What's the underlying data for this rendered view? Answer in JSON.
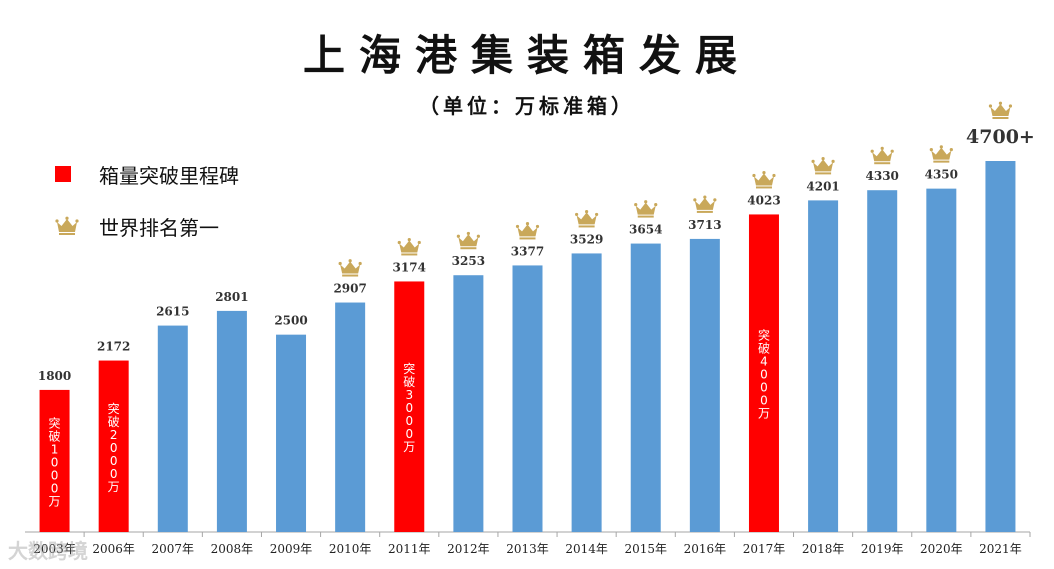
{
  "title": "上海港集装箱发展",
  "subtitle": "（单位：万标准箱）",
  "legend": {
    "milestone_label": "箱量突破里程碑",
    "rank_label": "世界排名第一"
  },
  "watermark": "大数跨境",
  "colors": {
    "normal_bar": "#5b9bd5",
    "milestone_bar": "#ff0000",
    "crown": "#c9a85a",
    "axis": "#a6a6a6"
  },
  "chart_data": {
    "type": "bar",
    "title": "上海港集装箱发展",
    "subtitle": "（单位：万标准箱）",
    "categories": [
      "2003年",
      "2006年",
      "2007年",
      "2008年",
      "2009年",
      "2010年",
      "2011年",
      "2012年",
      "2013年",
      "2014年",
      "2015年",
      "2016年",
      "2017年",
      "2018年",
      "2019年",
      "2020年",
      "2021年"
    ],
    "values": [
      1800,
      2172,
      2615,
      2801,
      2500,
      2907,
      3174,
      3253,
      3377,
      3529,
      3654,
      3713,
      4023,
      4201,
      4330,
      4350,
      4700
    ],
    "value_labels": [
      "1800",
      "2172",
      "2615",
      "2801",
      "2500",
      "2907",
      "3174",
      "3253",
      "3377",
      "3529",
      "3654",
      "3713",
      "4023",
      "4201",
      "4330",
      "4350",
      "4700+"
    ],
    "milestone": [
      true,
      true,
      false,
      false,
      false,
      false,
      true,
      false,
      false,
      false,
      false,
      false,
      true,
      false,
      false,
      false,
      false
    ],
    "milestone_labels": [
      "突破1000万",
      "突破2000万",
      "",
      "",
      "",
      "",
      "突破3000万",
      "",
      "",
      "",
      "",
      "",
      "突破4000万",
      "",
      "",
      "",
      ""
    ],
    "rank_first": [
      false,
      false,
      false,
      false,
      false,
      true,
      true,
      true,
      true,
      true,
      true,
      true,
      true,
      true,
      true,
      true,
      true
    ],
    "ylim": [
      0,
      4700
    ],
    "grid": false,
    "legend_position": "top-left"
  }
}
